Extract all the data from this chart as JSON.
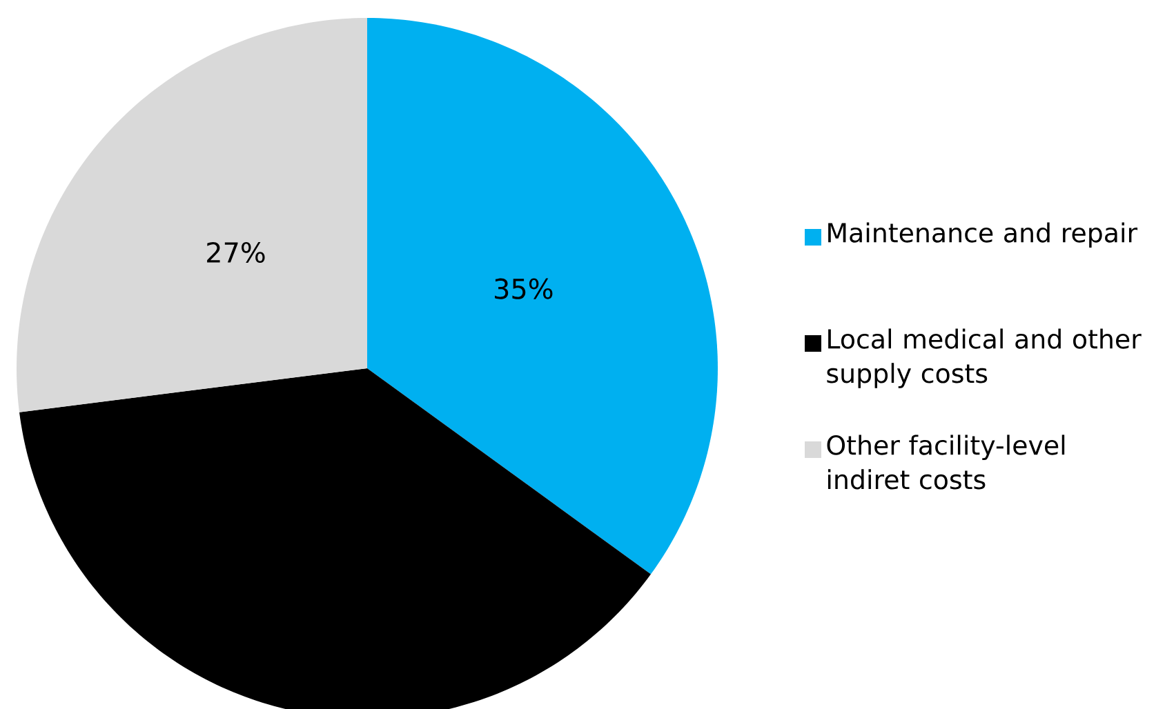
{
  "chart_data": {
    "type": "pie",
    "categories": [
      "Maintenance and repair",
      "Local medical and other supply costs",
      "Other facility-level indiret costs"
    ],
    "values": [
      35,
      38,
      27
    ],
    "colors": [
      "#00b0f0",
      "#000000",
      "#d9d9d9"
    ],
    "value_labels": [
      "35%",
      null,
      "27%"
    ],
    "legend": "right"
  }
}
